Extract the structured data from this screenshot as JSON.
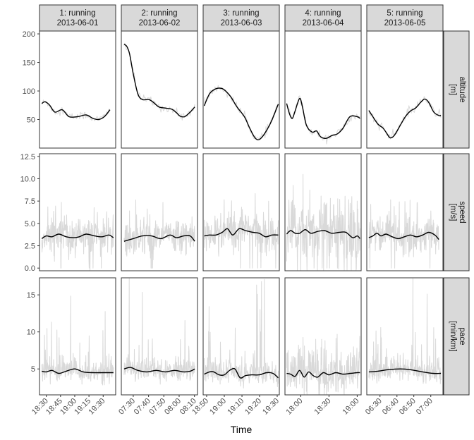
{
  "chart_data": {
    "type": "line",
    "xlabel": "Time",
    "colors": {
      "raw": "#d9d9d9",
      "smooth": "#000000",
      "strip_fill": "#d9d9d9",
      "frame": "#333333"
    },
    "facets": [
      {
        "strip": [
          "1: running",
          "2013-06-01"
        ],
        "xlim": [
          18.38,
          19.72
        ],
        "xticks": [
          {
            "v": 18.5,
            "label": "18:30"
          },
          {
            "v": 18.75,
            "label": "18:45"
          },
          {
            "v": 19.0,
            "label": "19:00"
          },
          {
            "v": 19.25,
            "label": "19:15"
          },
          {
            "v": 19.5,
            "label": "19:30"
          }
        ]
      },
      {
        "strip": [
          "2: running",
          "2013-06-02"
        ],
        "xlim": [
          7.37,
          8.2
        ],
        "xticks": [
          {
            "v": 7.5,
            "label": "07:30"
          },
          {
            "v": 7.667,
            "label": "07:40"
          },
          {
            "v": 7.833,
            "label": "07:50"
          },
          {
            "v": 8.0,
            "label": "08:00"
          },
          {
            "v": 8.167,
            "label": "08:10"
          }
        ]
      },
      {
        "strip": [
          "3: running",
          "2013-06-03"
        ],
        "xlim": [
          18.8,
          19.52
        ],
        "xticks": [
          {
            "v": 18.833,
            "label": "18:50"
          },
          {
            "v": 19.0,
            "label": "19:00"
          },
          {
            "v": 19.167,
            "label": "19:10"
          },
          {
            "v": 19.333,
            "label": "19:20"
          },
          {
            "v": 19.5,
            "label": "19:30"
          }
        ]
      },
      {
        "strip": [
          "4: running",
          "2013-06-04"
        ],
        "xlim": [
          17.72,
          19.07
        ],
        "xticks": [
          {
            "v": 18.0,
            "label": "18:00"
          },
          {
            "v": 18.5,
            "label": "18:30"
          },
          {
            "v": 19.0,
            "label": "19:00"
          }
        ]
      },
      {
        "strip": [
          "5: running",
          "2013-06-05"
        ],
        "xlim": [
          6.37,
          7.12
        ],
        "xticks": [
          {
            "v": 6.5,
            "label": "06:30"
          },
          {
            "v": 6.667,
            "label": "06:40"
          },
          {
            "v": 6.833,
            "label": "06:50"
          },
          {
            "v": 7.0,
            "label": "07:00"
          }
        ]
      }
    ],
    "rows": [
      {
        "key": "altitude",
        "strip": [
          "altitude",
          "[m]"
        ],
        "ylim": [
          0,
          205
        ],
        "yticks": [
          {
            "v": 50,
            "label": "50"
          },
          {
            "v": 100,
            "label": "100"
          },
          {
            "v": 150,
            "label": "150"
          },
          {
            "v": 200,
            "label": "200"
          }
        ],
        "smooth": [
          [
            [
              18.42,
              78
            ],
            [
              18.48,
              81
            ],
            [
              18.56,
              75
            ],
            [
              18.65,
              63
            ],
            [
              18.78,
              67
            ],
            [
              18.9,
              55
            ],
            [
              19.05,
              55
            ],
            [
              19.2,
              58
            ],
            [
              19.32,
              52
            ],
            [
              19.42,
              50
            ],
            [
              19.52,
              55
            ],
            [
              19.62,
              67
            ]
          ],
          [
            [
              7.4,
              182
            ],
            [
              7.43,
              178
            ],
            [
              7.46,
              165
            ],
            [
              7.5,
              130
            ],
            [
              7.55,
              95
            ],
            [
              7.6,
              85
            ],
            [
              7.67,
              85
            ],
            [
              7.72,
              80
            ],
            [
              7.78,
              72
            ],
            [
              7.85,
              70
            ],
            [
              7.92,
              68
            ],
            [
              7.97,
              62
            ],
            [
              8.01,
              56
            ],
            [
              8.06,
              55
            ],
            [
              8.12,
              63
            ],
            [
              8.17,
              72
            ]
          ],
          [
            [
              18.81,
              74
            ],
            [
              18.86,
              95
            ],
            [
              18.91,
              103
            ],
            [
              18.96,
              105
            ],
            [
              19.0,
              102
            ],
            [
              19.06,
              90
            ],
            [
              19.12,
              72
            ],
            [
              19.19,
              55
            ],
            [
              19.24,
              35
            ],
            [
              19.29,
              18
            ],
            [
              19.33,
              15
            ],
            [
              19.38,
              25
            ],
            [
              19.44,
              45
            ],
            [
              19.51,
              77
            ]
          ],
          [
            [
              17.75,
              78
            ],
            [
              17.8,
              60
            ],
            [
              17.85,
              52
            ],
            [
              17.9,
              65
            ],
            [
              17.98,
              87
            ],
            [
              18.03,
              72
            ],
            [
              18.1,
              40
            ],
            [
              18.2,
              28
            ],
            [
              18.28,
              30
            ],
            [
              18.35,
              20
            ],
            [
              18.45,
              17
            ],
            [
              18.55,
              22
            ],
            [
              18.65,
              25
            ],
            [
              18.75,
              35
            ],
            [
              18.87,
              55
            ],
            [
              19.0,
              55
            ],
            [
              19.05,
              52
            ]
          ],
          [
            [
              6.39,
              66
            ],
            [
              6.43,
              55
            ],
            [
              6.48,
              42
            ],
            [
              6.53,
              35
            ],
            [
              6.57,
              25
            ],
            [
              6.6,
              18
            ],
            [
              6.64,
              22
            ],
            [
              6.7,
              40
            ],
            [
              6.75,
              55
            ],
            [
              6.8,
              65
            ],
            [
              6.85,
              70
            ],
            [
              6.9,
              80
            ],
            [
              6.94,
              86
            ],
            [
              6.98,
              80
            ],
            [
              7.03,
              63
            ],
            [
              7.08,
              57
            ],
            [
              7.1,
              57
            ]
          ]
        ]
      },
      {
        "key": "speed",
        "strip": [
          "speed",
          "[m/s]"
        ],
        "ylim": [
          -0.3,
          12.8
        ],
        "yticks": [
          {
            "v": 0.0,
            "label": "0.0"
          },
          {
            "v": 2.5,
            "label": "2.5"
          },
          {
            "v": 5.0,
            "label": "5.0"
          },
          {
            "v": 7.5,
            "label": "7.5"
          },
          {
            "v": 10.0,
            "label": "10.0"
          },
          {
            "v": 12.5,
            "label": "12.5"
          }
        ],
        "smooth": [
          [
            [
              18.42,
              3.3
            ],
            [
              18.5,
              3.6
            ],
            [
              18.6,
              3.5
            ],
            [
              18.72,
              3.8
            ],
            [
              18.85,
              3.5
            ],
            [
              18.98,
              3.4
            ],
            [
              19.08,
              3.5
            ],
            [
              19.2,
              3.8
            ],
            [
              19.35,
              3.6
            ],
            [
              19.48,
              3.5
            ],
            [
              19.6,
              3.7
            ],
            [
              19.68,
              3.4
            ]
          ],
          [
            [
              7.4,
              3.0
            ],
            [
              7.5,
              3.3
            ],
            [
              7.6,
              3.6
            ],
            [
              7.7,
              3.6
            ],
            [
              7.8,
              3.3
            ],
            [
              7.9,
              3.7
            ],
            [
              7.97,
              3.4
            ],
            [
              8.05,
              3.6
            ],
            [
              8.12,
              3.6
            ],
            [
              8.17,
              3.0
            ]
          ],
          [
            [
              18.81,
              3.6
            ],
            [
              18.86,
              3.7
            ],
            [
              18.92,
              3.7
            ],
            [
              18.98,
              4.0
            ],
            [
              19.03,
              4.4
            ],
            [
              19.08,
              3.7
            ],
            [
              19.14,
              4.4
            ],
            [
              19.2,
              4.2
            ],
            [
              19.27,
              4.0
            ],
            [
              19.33,
              3.9
            ],
            [
              19.39,
              3.5
            ],
            [
              19.45,
              3.7
            ],
            [
              19.51,
              3.7
            ]
          ],
          [
            [
              17.75,
              3.8
            ],
            [
              17.82,
              4.2
            ],
            [
              17.9,
              3.9
            ],
            [
              17.98,
              3.9
            ],
            [
              18.08,
              4.3
            ],
            [
              18.18,
              3.9
            ],
            [
              18.3,
              4.1
            ],
            [
              18.42,
              4.2
            ],
            [
              18.55,
              3.9
            ],
            [
              18.68,
              4.0
            ],
            [
              18.8,
              4.0
            ],
            [
              18.92,
              3.4
            ],
            [
              19.0,
              3.6
            ],
            [
              19.05,
              3.3
            ]
          ],
          [
            [
              6.39,
              3.4
            ],
            [
              6.43,
              3.6
            ],
            [
              6.47,
              3.9
            ],
            [
              6.51,
              3.6
            ],
            [
              6.56,
              3.8
            ],
            [
              6.62,
              3.5
            ],
            [
              6.68,
              3.3
            ],
            [
              6.74,
              3.5
            ],
            [
              6.8,
              3.7
            ],
            [
              6.86,
              3.5
            ],
            [
              6.92,
              3.7
            ],
            [
              6.98,
              4.0
            ],
            [
              7.04,
              3.7
            ],
            [
              7.08,
              3.2
            ]
          ]
        ]
      },
      {
        "key": "pace",
        "strip": [
          "pace",
          "[min/km]"
        ],
        "ylim": [
          1.5,
          17.3
        ],
        "yticks": [
          {
            "v": 5,
            "label": "5"
          },
          {
            "v": 10,
            "label": "10"
          },
          {
            "v": 15,
            "label": "15"
          }
        ],
        "smooth": [
          [
            [
              18.42,
              4.7
            ],
            [
              18.5,
              4.6
            ],
            [
              18.6,
              4.8
            ],
            [
              18.72,
              4.4
            ],
            [
              18.85,
              4.7
            ],
            [
              19.0,
              5.0
            ],
            [
              19.15,
              4.6
            ],
            [
              19.3,
              4.5
            ],
            [
              19.45,
              4.5
            ],
            [
              19.6,
              4.5
            ],
            [
              19.68,
              4.5
            ]
          ],
          [
            [
              7.4,
              5.0
            ],
            [
              7.47,
              5.2
            ],
            [
              7.55,
              4.8
            ],
            [
              7.65,
              4.6
            ],
            [
              7.75,
              4.8
            ],
            [
              7.85,
              4.6
            ],
            [
              7.95,
              4.8
            ],
            [
              8.05,
              4.6
            ],
            [
              8.12,
              4.7
            ],
            [
              8.17,
              5.0
            ]
          ],
          [
            [
              18.81,
              4.3
            ],
            [
              18.86,
              4.6
            ],
            [
              18.9,
              4.6
            ],
            [
              18.95,
              4.2
            ],
            [
              19.0,
              4.2
            ],
            [
              19.05,
              4.8
            ],
            [
              19.1,
              5.0
            ],
            [
              19.15,
              3.8
            ],
            [
              19.2,
              4.1
            ],
            [
              19.26,
              4.2
            ],
            [
              19.33,
              4.2
            ],
            [
              19.4,
              4.5
            ],
            [
              19.46,
              4.4
            ],
            [
              19.51,
              3.8
            ]
          ],
          [
            [
              17.75,
              4.4
            ],
            [
              17.82,
              4.3
            ],
            [
              17.9,
              4.0
            ],
            [
              17.98,
              4.8
            ],
            [
              18.06,
              3.9
            ],
            [
              18.14,
              4.6
            ],
            [
              18.22,
              4.1
            ],
            [
              18.3,
              3.9
            ],
            [
              18.4,
              4.5
            ],
            [
              18.5,
              4.2
            ],
            [
              18.62,
              4.5
            ],
            [
              18.75,
              4.3
            ],
            [
              18.88,
              4.4
            ],
            [
              19.0,
              4.5
            ],
            [
              19.05,
              4.5
            ]
          ],
          [
            [
              6.39,
              4.6
            ],
            [
              6.48,
              4.7
            ],
            [
              6.58,
              4.9
            ],
            [
              6.7,
              5.0
            ],
            [
              6.8,
              4.9
            ],
            [
              6.92,
              4.6
            ],
            [
              7.02,
              4.4
            ],
            [
              7.1,
              4.4
            ]
          ]
        ]
      }
    ]
  }
}
